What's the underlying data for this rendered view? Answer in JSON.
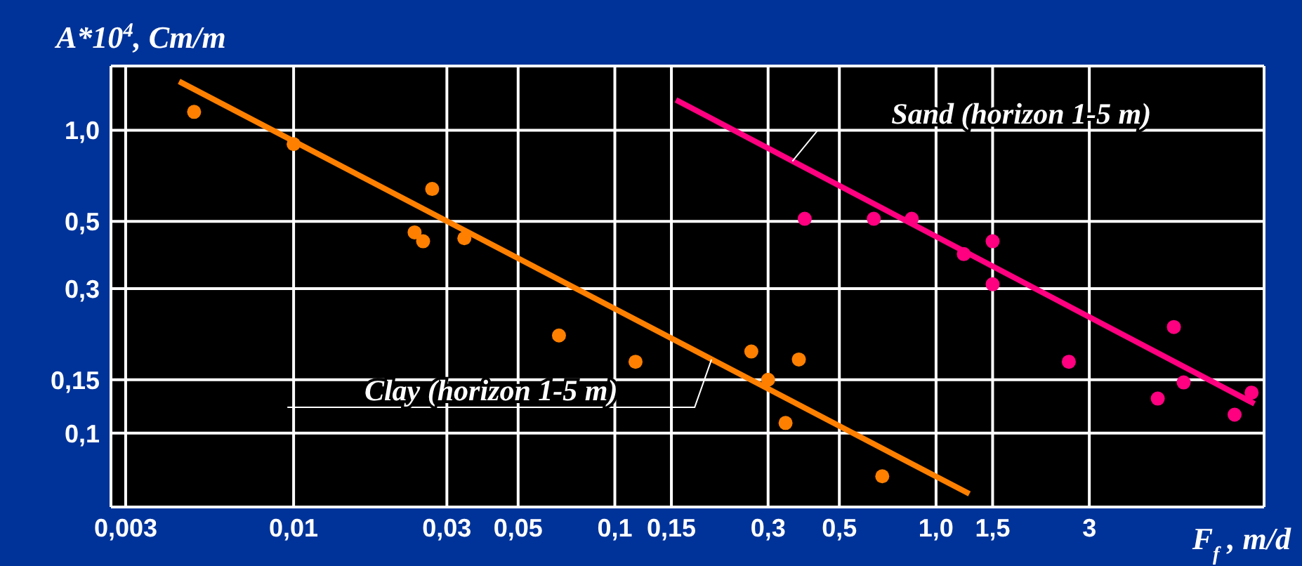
{
  "chart_data": {
    "type": "scatter",
    "ylabel": "A*10$^{4}$, Cm/m",
    "xlabel": "F$_{f}$ , m/d",
    "log": "xy",
    "xlim": [
      0.0027,
      10.5
    ],
    "ylim": [
      0.057,
      1.63
    ],
    "xticks": [
      {
        "value": 0.003,
        "label": "0,003"
      },
      {
        "value": 0.01,
        "label": "0,01"
      },
      {
        "value": 0.03,
        "label": "0,03"
      },
      {
        "value": 0.05,
        "label": "0,05"
      },
      {
        "value": 0.1,
        "label": "0,1"
      },
      {
        "value": 0.15,
        "label": "0,15"
      },
      {
        "value": 0.3,
        "label": "0,3"
      },
      {
        "value": 0.5,
        "label": "0,5"
      },
      {
        "value": 1.0,
        "label": "1,0"
      },
      {
        "value": 1.5,
        "label": "1,5"
      },
      {
        "value": 3,
        "label": "3"
      }
    ],
    "yticks": [
      {
        "value": 0.1,
        "label": "0,1"
      },
      {
        "value": 0.15,
        "label": "0,15"
      },
      {
        "value": 0.3,
        "label": "0,3"
      },
      {
        "value": 0.5,
        "label": "0,5"
      },
      {
        "value": 1.0,
        "label": "1,0"
      }
    ],
    "grid": true,
    "series": [
      {
        "color": "#ff8000",
        "marker": "circle",
        "x": [
          0.0049,
          0.01,
          0.027,
          0.0238,
          0.0253,
          0.034,
          0.067,
          0.116,
          0.266,
          0.3,
          0.374,
          0.34,
          0.68
        ],
        "values": [
          1.15,
          0.9,
          0.64,
          0.46,
          0.43,
          0.44,
          0.21,
          0.172,
          0.186,
          0.15,
          0.175,
          0.108,
          0.072
        ]
      },
      {
        "type": "line",
        "color": "#ff8000",
        "marker": "none",
        "x": [
          0.0044,
          1.27
        ],
        "values": [
          1.45,
          0.063
        ]
      },
      {
        "color": "#ff0080",
        "marker": "circle",
        "x": [
          0.39,
          0.64,
          0.84,
          1.22,
          1.5,
          1.5,
          2.59,
          5.5,
          4.9,
          5.9,
          8.5,
          9.6
        ],
        "values": [
          0.51,
          0.51,
          0.51,
          0.39,
          0.43,
          0.31,
          0.172,
          0.224,
          0.13,
          0.147,
          0.115,
          0.136
        ]
      },
      {
        "type": "line",
        "color": "#ff0080",
        "marker": "none",
        "x": [
          0.155,
          9.8
        ],
        "values": [
          1.26,
          0.125
        ]
      }
    ],
    "annotations": [
      {
        "text": "Sand (horizon 1-5 m)",
        "x": 0.357,
        "y": 0.79
      },
      {
        "text": "Clay (horizon 1-5 m)",
        "x": 0.2,
        "y": 0.175
      }
    ]
  }
}
